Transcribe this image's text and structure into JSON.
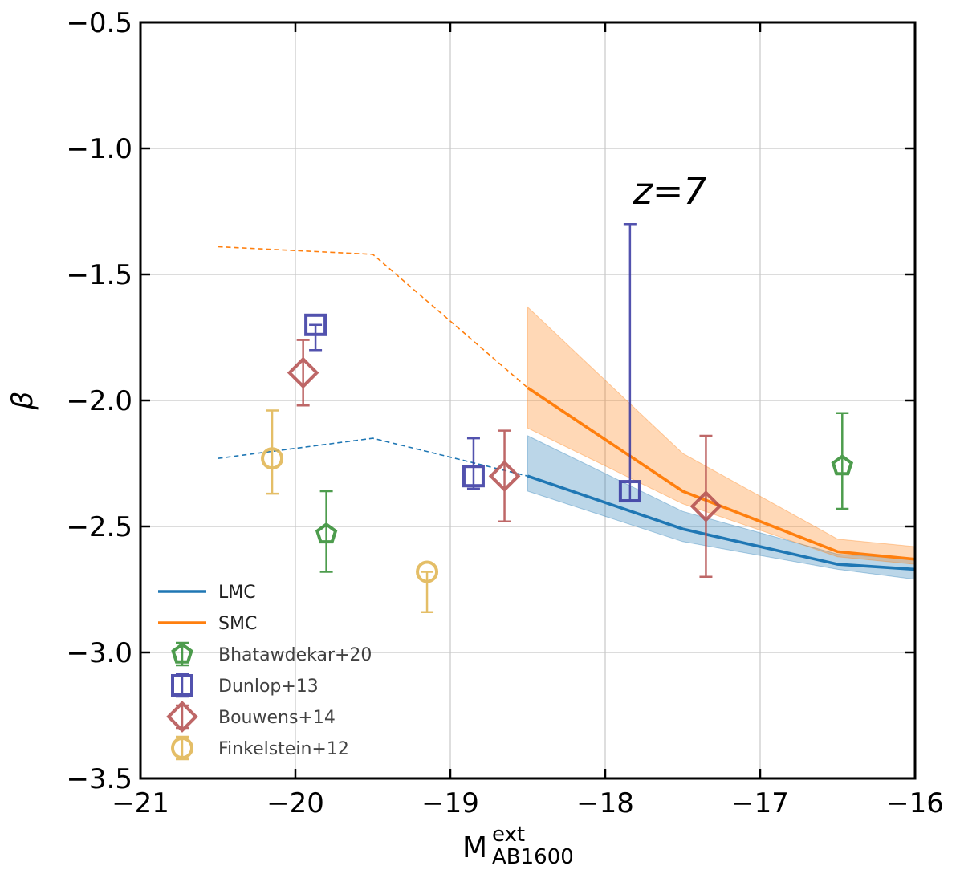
{
  "chart_data": {
    "type": "scatter",
    "xlabel": "M",
    "xlabel_sup": "ext",
    "xlabel_sub": "AB1600",
    "ylabel": "β",
    "xlim": [
      -21,
      -16
    ],
    "ylim": [
      -3.5,
      -0.5
    ],
    "xticks": [
      -21,
      -20,
      -19,
      -18,
      -17,
      -16
    ],
    "yticks": [
      -3.5,
      -3.0,
      -2.5,
      -2.0,
      -1.5,
      -1.0,
      -0.5
    ],
    "xtick_labels": [
      "−21",
      "−20",
      "−19",
      "−18",
      "−17",
      "−16"
    ],
    "ytick_labels": [
      "−3.5",
      "−3.0",
      "−2.5",
      "−2.0",
      "−1.5",
      "−1.0",
      "−0.5"
    ],
    "grid": true,
    "annotation": {
      "text": "z=7",
      "x": -17.82,
      "y": -1.22
    },
    "legend_position": "lower-left",
    "lines": [
      {
        "name": "LMC",
        "color": "#1f77b4",
        "dashed": [
          [
            -20.5,
            -2.23
          ],
          [
            -19.5,
            -2.15
          ],
          [
            -18.5,
            -2.3
          ]
        ],
        "solid": [
          [
            -18.5,
            -2.3
          ],
          [
            -17.5,
            -2.51
          ],
          [
            -16.5,
            -2.65
          ],
          [
            -16.0,
            -2.67
          ]
        ],
        "band_upper": [
          [
            -18.5,
            -2.14
          ],
          [
            -17.5,
            -2.44
          ],
          [
            -16.5,
            -2.61
          ],
          [
            -16.0,
            -2.63
          ]
        ],
        "band_lower": [
          [
            -18.5,
            -2.36
          ],
          [
            -17.5,
            -2.56
          ],
          [
            -16.5,
            -2.67
          ],
          [
            -16.0,
            -2.71
          ]
        ]
      },
      {
        "name": "SMC",
        "color": "#ff7f0e",
        "dashed": [
          [
            -20.5,
            -1.39
          ],
          [
            -19.5,
            -1.42
          ],
          [
            -18.5,
            -1.95
          ]
        ],
        "solid": [
          [
            -18.5,
            -1.95
          ],
          [
            -17.5,
            -2.36
          ],
          [
            -16.5,
            -2.6
          ],
          [
            -16.0,
            -2.63
          ]
        ],
        "band_upper": [
          [
            -18.5,
            -1.63
          ],
          [
            -17.5,
            -2.21
          ],
          [
            -16.5,
            -2.55
          ],
          [
            -16.0,
            -2.58
          ]
        ],
        "band_lower": [
          [
            -18.5,
            -2.11
          ],
          [
            -17.5,
            -2.41
          ],
          [
            -16.5,
            -2.62
          ],
          [
            -16.0,
            -2.65
          ]
        ]
      }
    ],
    "series": [
      {
        "name": "Bhatawdekar+20",
        "marker": "pentagon",
        "color": "#2e8b2e",
        "points": [
          {
            "x": -19.8,
            "y": -2.53,
            "yerr_low": 0.15,
            "yerr_high": 0.17
          },
          {
            "x": -16.47,
            "y": -2.26,
            "yerr_low": 0.17,
            "yerr_high": 0.21
          }
        ]
      },
      {
        "name": "Dunlop+13",
        "marker": "square",
        "color": "#3535a0",
        "points": [
          {
            "x": -19.87,
            "y": -1.7,
            "yerr_low": 0.1,
            "yerr_high": 0.0
          },
          {
            "x": -18.85,
            "y": -2.3,
            "yerr_low": 0.05,
            "yerr_high": 0.15
          },
          {
            "x": -17.84,
            "y": -2.36,
            "yerr_low": 0.04,
            "yerr_high": 1.06
          }
        ]
      },
      {
        "name": "Bouwens+14",
        "marker": "diamond",
        "color": "#b34d4d",
        "points": [
          {
            "x": -19.95,
            "y": -1.89,
            "yerr_low": 0.13,
            "yerr_high": 0.13
          },
          {
            "x": -18.65,
            "y": -2.3,
            "yerr_low": 0.18,
            "yerr_high": 0.18
          },
          {
            "x": -17.35,
            "y": -2.42,
            "yerr_low": 0.28,
            "yerr_high": 0.28
          }
        ]
      },
      {
        "name": "Finkelstein+12",
        "marker": "circle",
        "color": "#e0b34d",
        "points": [
          {
            "x": -20.15,
            "y": -2.23,
            "yerr_low": 0.14,
            "yerr_high": 0.19
          },
          {
            "x": -19.15,
            "y": -2.68,
            "yerr_low": 0.16,
            "yerr_high": 0.0
          }
        ]
      }
    ]
  }
}
